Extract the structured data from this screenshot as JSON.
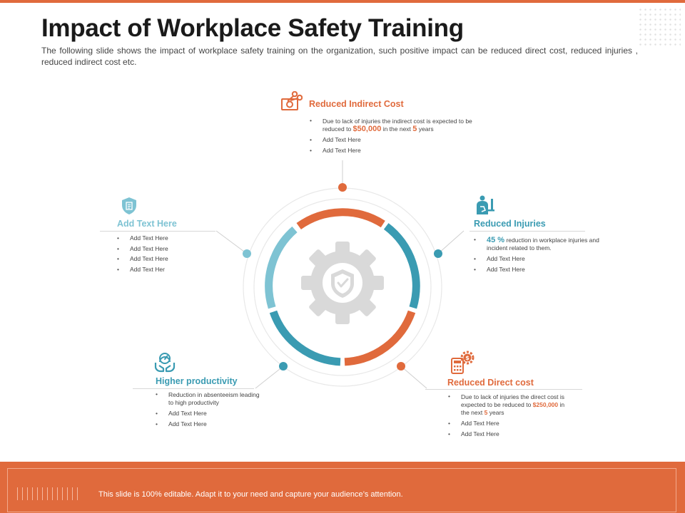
{
  "title": "Impact of Workplace Safety Training",
  "subtitle": "The following slide shows the impact of workplace safety training on the organization, such positive impact can be reduced direct cost, reduced injuries , reduced indirect cost etc.",
  "colors": {
    "orange": "#e06a3c",
    "teal": "#3a9bb2",
    "light_teal": "#7ec3d3",
    "gray": "#d9d9d9"
  },
  "center": {
    "icon": "gear-shield-check-icon"
  },
  "segments": [
    {
      "icon": "scissors-money-icon",
      "heading": "Reduced Indirect Cost",
      "bullet1_pre": "Due to lack of injuries the indirect cost is expected to be reduced to",
      "bullet1_amount": "$50,000",
      "bullet1_mid": "in the next",
      "bullet1_years": "5",
      "bullet1_post": "years",
      "bullet2": "Add Text Here",
      "bullet3": "Add Text Here"
    },
    {
      "icon": "injured-person-icon",
      "heading": "Reduced Injuries",
      "bullet1_pct": "45 %",
      "bullet1_text": "reduction in workplace injuries and incident related to them.",
      "bullet2": "Add Text Here",
      "bullet3": "Add Text Here"
    },
    {
      "icon": "calculator-gear-dollar-icon",
      "heading": "Reduced Direct cost",
      "bullet1_pre": "Due to lack of injuries the direct cost is expected to be reduced to",
      "bullet1_amount": "$250,000",
      "bullet1_mid": "in the next",
      "bullet1_years": "5",
      "bullet1_post": "years",
      "bullet2": "Add Text Here",
      "bullet3": "Add Text Here"
    },
    {
      "icon": "hands-gauge-icon",
      "heading": "Higher productivity",
      "bullet1": "Reduction in absenteeism leading to high productivity",
      "bullet2": "Add Text Here",
      "bullet3": "Add Text Here"
    },
    {
      "icon": "shield-document-icon",
      "heading": "Add Text Here",
      "bullets": [
        "Add Text Here",
        "Add Text Here",
        "Add Text Here",
        "Add Text Her"
      ]
    }
  ],
  "footer": {
    "text": "This slide is 100% editable. Adapt it to your need and capture your audience’s attention."
  }
}
